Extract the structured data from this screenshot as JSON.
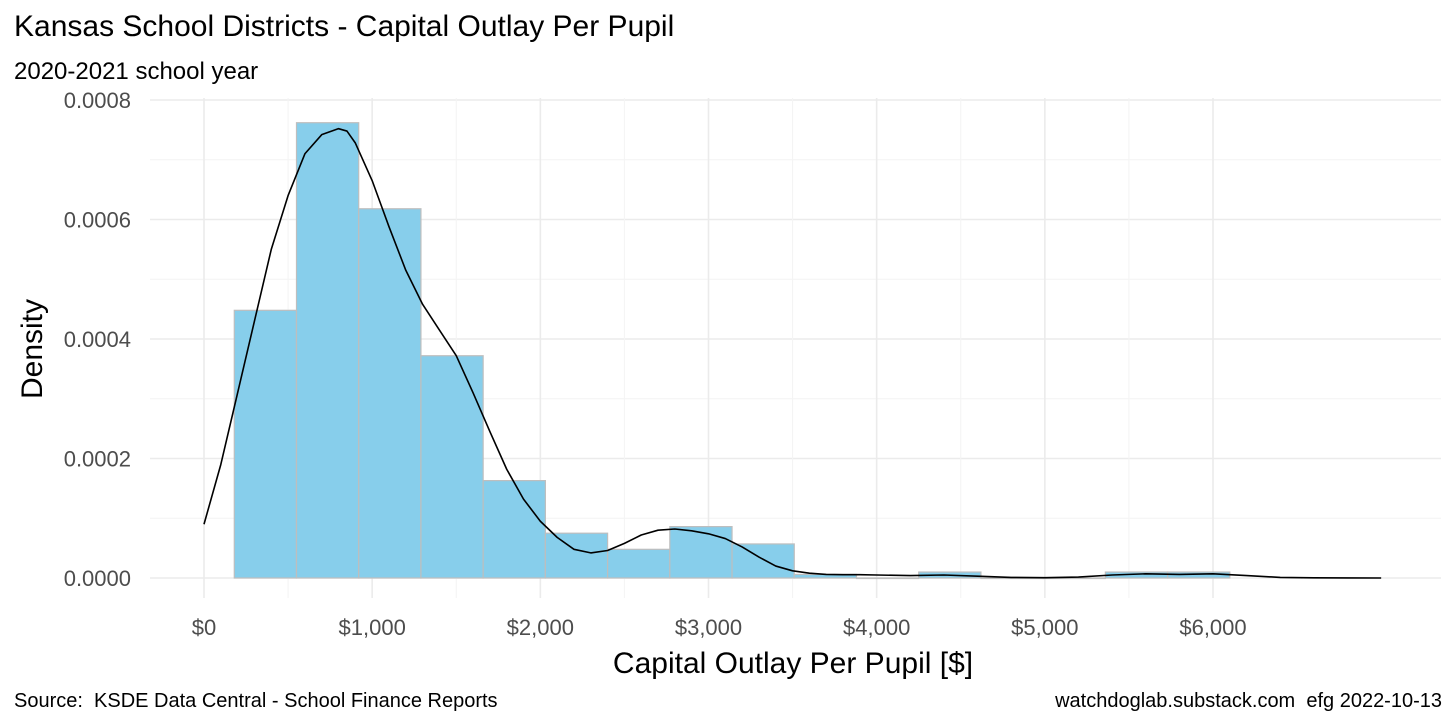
{
  "chart_data": {
    "type": "histogram",
    "title": "Kansas School Districts - Capital Outlay Per Pupil",
    "subtitle": "2020-2021 school year",
    "xlabel": "Capital Outlay Per Pupil [$]",
    "ylabel": "Density",
    "xlim": [
      0,
      7000
    ],
    "ylim": [
      0,
      0.0008
    ],
    "x_ticks": [
      0,
      1000,
      2000,
      3000,
      4000,
      5000,
      6000
    ],
    "x_tick_labels": [
      "$0",
      "$1,000",
      "$2,000",
      "$3,000",
      "$4,000",
      "$5,000",
      "$6,000"
    ],
    "y_ticks": [
      0,
      0.0002,
      0.0004,
      0.0006,
      0.0008
    ],
    "y_tick_labels": [
      "0.0000",
      "0.0002",
      "0.0004",
      "0.0006",
      "0.0008"
    ],
    "grid": true,
    "bar_color": "#87CEEB",
    "bar_border_color": "#BEBEBE",
    "bins": [
      {
        "x0": 180,
        "x1": 550,
        "density": 0.000448
      },
      {
        "x0": 550,
        "x1": 920,
        "density": 0.000762
      },
      {
        "x0": 920,
        "x1": 1290,
        "density": 0.000618
      },
      {
        "x0": 1290,
        "x1": 1660,
        "density": 0.000372
      },
      {
        "x0": 1660,
        "x1": 2030,
        "density": 0.000163
      },
      {
        "x0": 2030,
        "x1": 2400,
        "density": 7.5e-05
      },
      {
        "x0": 2400,
        "x1": 2770,
        "density": 4.8e-05
      },
      {
        "x0": 2770,
        "x1": 3140,
        "density": 8.6e-05
      },
      {
        "x0": 3140,
        "x1": 3510,
        "density": 5.7e-05
      },
      {
        "x0": 3510,
        "x1": 3880,
        "density": 6e-06
      },
      {
        "x0": 3880,
        "x1": 4250,
        "density": 0.0
      },
      {
        "x0": 4250,
        "x1": 4620,
        "density": 1e-05
      },
      {
        "x0": 4620,
        "x1": 4990,
        "density": 0.0
      },
      {
        "x0": 4990,
        "x1": 5360,
        "density": 0.0
      },
      {
        "x0": 5360,
        "x1": 5730,
        "density": 1e-05
      },
      {
        "x0": 5730,
        "x1": 6100,
        "density": 1e-05
      }
    ],
    "density_curve": {
      "x": [
        0,
        100,
        200,
        300,
        400,
        500,
        600,
        700,
        800,
        850,
        900,
        1000,
        1100,
        1200,
        1300,
        1400,
        1500,
        1600,
        1700,
        1800,
        1900,
        2000,
        2100,
        2200,
        2300,
        2400,
        2500,
        2600,
        2700,
        2800,
        2900,
        3000,
        3100,
        3200,
        3300,
        3400,
        3500,
        3600,
        3700,
        3800,
        3900,
        4000,
        4200,
        4400,
        4600,
        4800,
        5000,
        5200,
        5400,
        5600,
        5800,
        6000,
        6200,
        6400,
        6600,
        6800,
        7000
      ],
      "y": [
        9e-05,
        0.00019,
        0.00031,
        0.00043,
        0.00055,
        0.00064,
        0.00071,
        0.000742,
        0.000752,
        0.000748,
        0.000728,
        0.000665,
        0.000588,
        0.000515,
        0.000458,
        0.000415,
        0.000372,
        0.00031,
        0.000245,
        0.000182,
        0.000132,
        9.5e-05,
        6.8e-05,
        4.8e-05,
        4.2e-05,
        4.6e-05,
        5.8e-05,
        7.2e-05,
        8e-05,
        8.2e-05,
        7.9e-05,
        7.4e-05,
        6.6e-05,
        5.2e-05,
        3.5e-05,
        2e-05,
        1.2e-05,
        8e-06,
        6e-06,
        5.5e-06,
        5.5e-06,
        5e-06,
        4e-06,
        5e-06,
        3e-06,
        1e-06,
        5e-07,
        1.5e-06,
        5e-06,
        7e-06,
        6e-06,
        7e-06,
        4e-06,
        1e-06,
        3e-07,
        1e-07,
        0.0
      ]
    }
  },
  "caption": {
    "source": "Source:  KSDE Data Central - School Finance Reports",
    "credit": "watchdoglab.substack.com  efg 2022-10-13"
  }
}
